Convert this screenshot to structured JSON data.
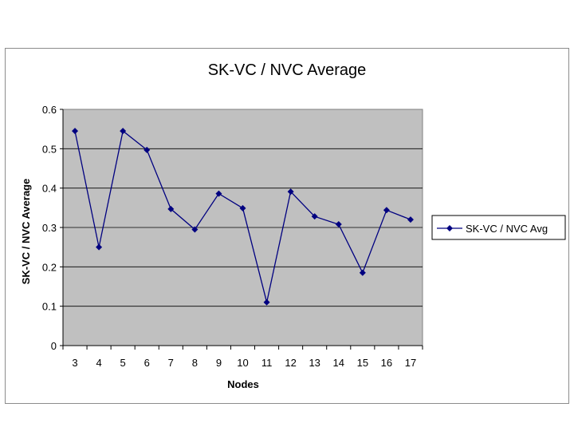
{
  "chart_data": {
    "type": "line",
    "title": "SK-VC / NVC Average",
    "xlabel": "Nodes",
    "ylabel": "SK-VC / NVC Average",
    "categories": [
      "3",
      "4",
      "5",
      "6",
      "7",
      "8",
      "9",
      "10",
      "11",
      "12",
      "13",
      "14",
      "15",
      "16",
      "17"
    ],
    "series": [
      {
        "name": "SK-VC / NVC Avg",
        "values": [
          0.545,
          0.25,
          0.545,
          0.497,
          0.347,
          0.295,
          0.386,
          0.349,
          0.11,
          0.391,
          0.328,
          0.308,
          0.185,
          0.344,
          0.32
        ]
      }
    ],
    "ylim": [
      0,
      0.6
    ],
    "yticks": [
      "0",
      "0.1",
      "0.2",
      "0.3",
      "0.4",
      "0.5",
      "0.6"
    ],
    "grid": true,
    "legend": "right",
    "colors": {
      "plot_background": "#c0c0c0",
      "series_line": "#000080",
      "gridline": "#000000"
    }
  }
}
